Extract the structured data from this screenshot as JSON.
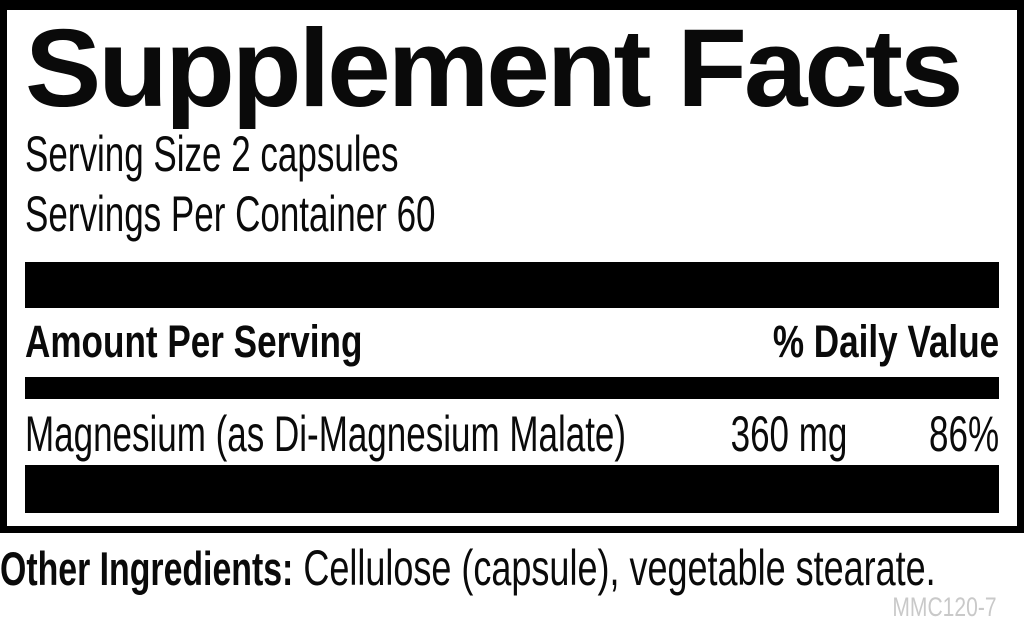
{
  "title": "Supplement Facts",
  "serving": {
    "size": "Serving Size 2 capsules",
    "per_container": "Servings Per Container 60"
  },
  "table": {
    "header": {
      "amount_col": "Amount Per Serving",
      "dv_col": "% Daily Value"
    },
    "rows": [
      {
        "name": "Magnesium (as Di-Magnesium Malate)",
        "amount": "360 mg",
        "daily_value": "86%"
      }
    ]
  },
  "other_ingredients": {
    "label": "Other Ingredients:",
    "value": "Cellulose (capsule), vegetable stearate."
  },
  "product_code": "MMC120-7",
  "colors": {
    "ink": "#0a0a0a",
    "bar": "#000000",
    "code": "#c9c9c9",
    "background": "#ffffff"
  }
}
